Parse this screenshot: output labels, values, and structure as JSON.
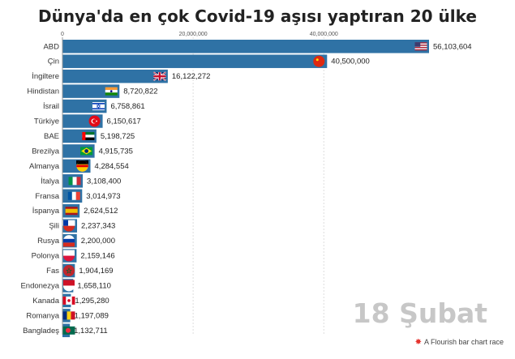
{
  "title": "Dünya'da en çok Covid-19 aşısı yaptıran 20 ülke",
  "date_label": "18 Şubat",
  "credit": {
    "icon": "flourish-star-icon",
    "text": "A Flourish bar chart race"
  },
  "colors": {
    "bar": "#2f72a5",
    "axis_text": "#333333",
    "grid": "#dddddd"
  },
  "chart_data": {
    "type": "bar",
    "orientation": "horizontal",
    "title": "Dünya'da en çok Covid-19 aşısı yaptıran 20 ülke",
    "xlim": [
      0,
      56103604
    ],
    "xticks": [
      0,
      20000000,
      40000000
    ],
    "xtick_labels": [
      "0",
      "20,000,000",
      "40,000,000"
    ],
    "grid": true,
    "categories": [
      "ABD",
      "Çin",
      "İngiltere",
      "Hindistan",
      "İsrail",
      "Türkiye",
      "BAE",
      "Brezilya",
      "Almanya",
      "İtalya",
      "Fransa",
      "İspanya",
      "Şili",
      "Rusya",
      "Polonya",
      "Fas",
      "Endonezya",
      "Kanada",
      "Romanya",
      "Bangladeş"
    ],
    "values": [
      56103604,
      40500000,
      16122272,
      8720822,
      6758861,
      6150617,
      5198725,
      4915735,
      4284554,
      3108400,
      3014973,
      2624512,
      2237343,
      2200000,
      2159146,
      1904169,
      1658110,
      1295280,
      1197089,
      1132711
    ],
    "value_labels": [
      "56,103,604",
      "40,500,000",
      "16,122,272",
      "8,720,822",
      "6,758,861",
      "6,150,617",
      "5,198,725",
      "4,915,735",
      "4,284,554",
      "3,108,400",
      "3,014,973",
      "2,624,512",
      "2,237,343",
      "2,200,000",
      "2,159,146",
      "1,904,169",
      "1,658,110",
      "1,295,280",
      "1,197,089",
      "1,132,711"
    ],
    "flags": [
      "us",
      "cn",
      "gb",
      "in",
      "il",
      "tr",
      "ae",
      "br",
      "de",
      "it",
      "fr",
      "es",
      "cl",
      "ru",
      "pl",
      "ma",
      "id",
      "ca",
      "ro",
      "bd"
    ]
  }
}
